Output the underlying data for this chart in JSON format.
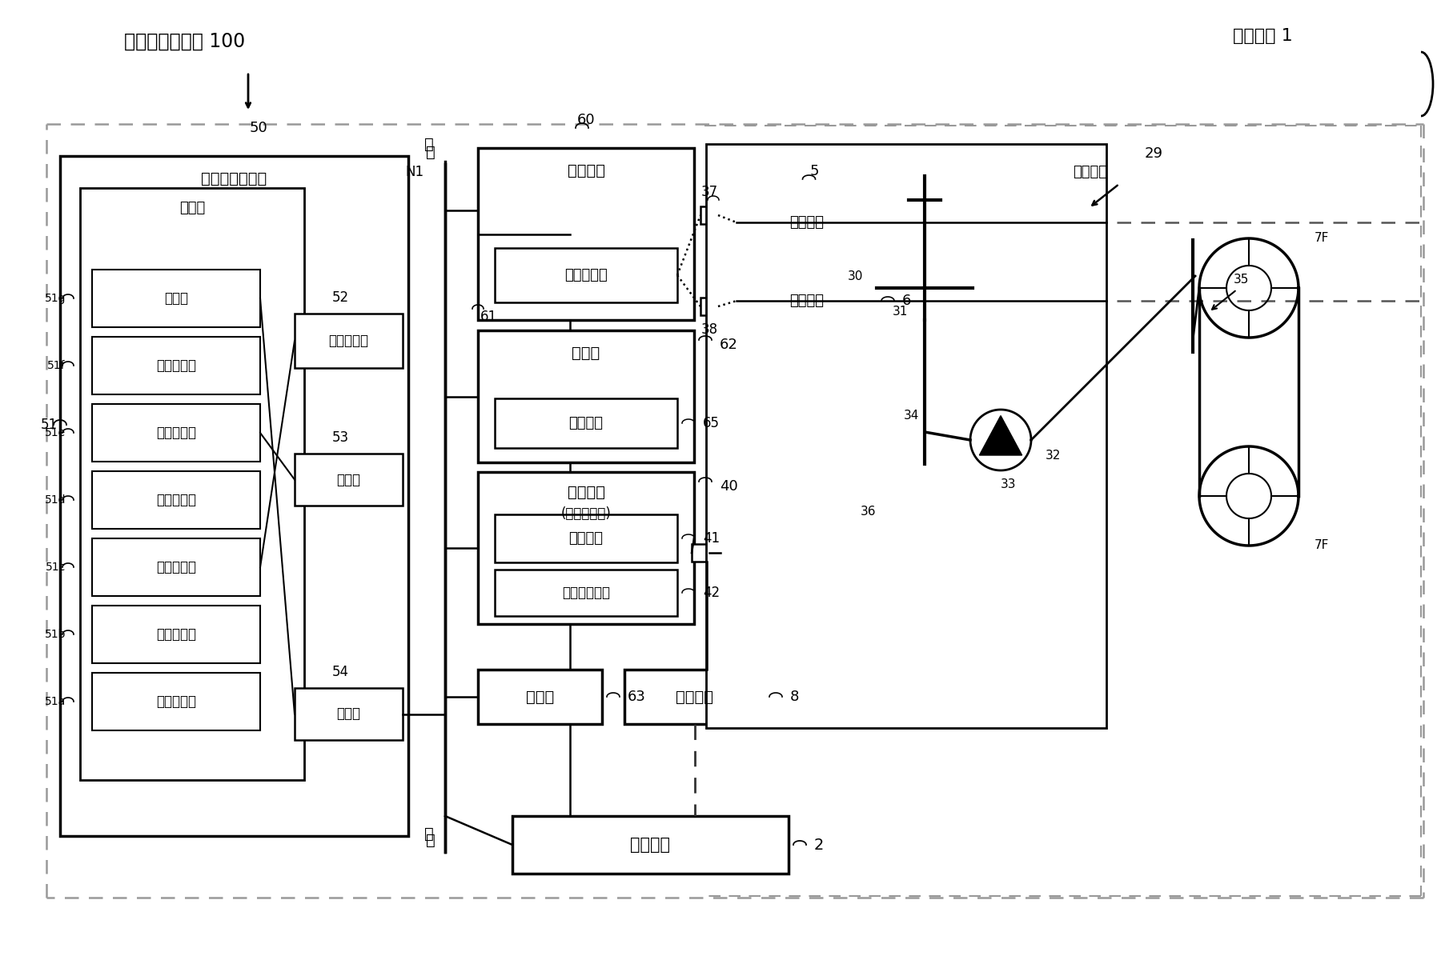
{
  "bg_color": "#ffffff",
  "title_system": "农作业支援系统 100",
  "title_machine": "农业机械 1",
  "label_50": "50",
  "label_support": "农作业支援装置",
  "label_51": "51",
  "label_control": "控制部",
  "label_51a": "51a",
  "label_51b": "51b",
  "label_51c": "51c",
  "label_51d": "51d",
  "label_51e": "51e",
  "label_51f": "51f",
  "label_51g": "51g",
  "label_field": "田地登记部",
  "label_area": "区域设定部",
  "label_route": "线路制作部",
  "label_track": "轨迹运算部",
  "label_remain": "余量运算部",
  "label_supply": "补给设定部",
  "label_notify": "通知部",
  "label_52": "52",
  "label_display": "显示操作部",
  "label_53": "53",
  "label_storage": "存储部",
  "label_54": "54",
  "label_comm": "通信部",
  "label_N1": "N1",
  "label_60": "60",
  "label_ctrl_dev": "控制装置",
  "label_61": "61",
  "label_auto": "自动控制部",
  "label_37": "37",
  "label_38": "38",
  "label_5": "5",
  "label_6": "6",
  "label_speed": "变速装置",
  "label_brake": "制动装置",
  "label_62": "62",
  "label_op": "操作部",
  "label_65": "65",
  "label_mode": "模式开关",
  "label_40": "40",
  "label_41": "41",
  "label_recv": "接收装置",
  "label_42": "42",
  "label_inertia": "惯性测量装置",
  "label_63": "63",
  "label_alarm": "警报部",
  "label_8": "8",
  "label_lift": "升降装置",
  "label_2": "2",
  "label_work": "作业装置",
  "label_29": "29",
  "label_steer": "操舵装置",
  "label_30": "30",
  "label_31": "31",
  "label_32": "32",
  "label_33": "33",
  "label_34": "34",
  "label_35": "35",
  "label_36": "36",
  "label_7F": "7F"
}
